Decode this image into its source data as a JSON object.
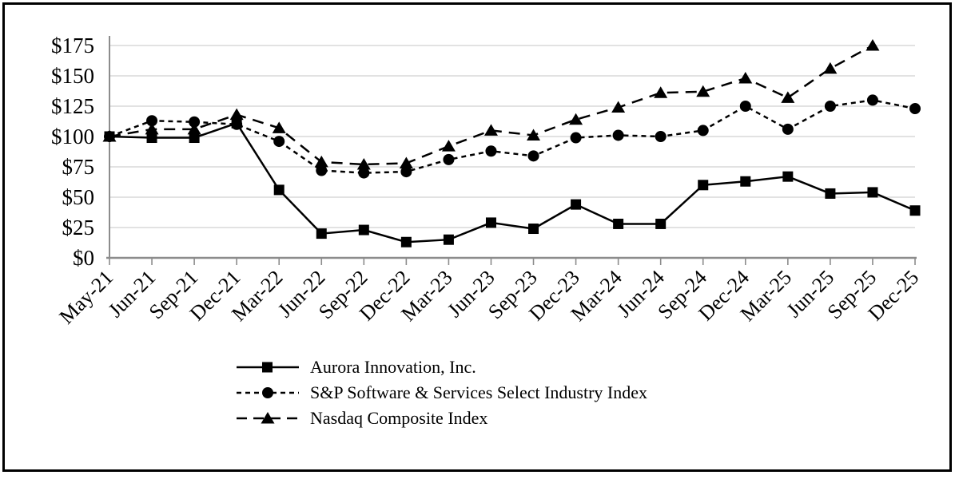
{
  "chart_data": {
    "type": "line",
    "title": "",
    "xlabel": "",
    "ylabel": "",
    "ylim": [
      0,
      175
    ],
    "grid": true,
    "legend_position": "bottom-left",
    "y_ticks": [
      "$0",
      "$25",
      "$50",
      "$75",
      "$100",
      "$125",
      "$150",
      "$175"
    ],
    "y_tick_values": [
      0,
      25,
      50,
      75,
      100,
      125,
      150,
      175
    ],
    "categories": [
      "May-21",
      "Jun-21",
      "Sep-21",
      "Dec-21",
      "Mar-22",
      "Jun-22",
      "Sep-22",
      "Dec-22",
      "Mar-23",
      "Jun-23",
      "Sep-23",
      "Dec-23",
      "Mar-24",
      "Jun-24",
      "Sep-24",
      "Dec-24",
      "Mar-25",
      "Jun-25",
      "Sep-25",
      "Dec-25"
    ],
    "series": [
      {
        "name": "Aurora Innovation, Inc.",
        "marker": "square",
        "dash": "solid",
        "values": [
          100,
          99,
          99,
          111,
          56,
          20,
          23,
          13,
          15,
          29,
          24,
          44,
          28,
          28,
          60,
          63,
          67,
          53,
          54,
          39
        ]
      },
      {
        "name": "S&P Software & Services Select Industry Index",
        "marker": "circle",
        "dash": "short-dash",
        "values": [
          100,
          113,
          112,
          110,
          96,
          72,
          70,
          71,
          81,
          88,
          84,
          99,
          101,
          100,
          105,
          125,
          106,
          125,
          130,
          123
        ]
      },
      {
        "name": "Nasdaq Composite Index",
        "marker": "triangle",
        "dash": "long-dash",
        "values": [
          100,
          106,
          106,
          118,
          107,
          79,
          77,
          78,
          92,
          105,
          101,
          114,
          124,
          136,
          137,
          148,
          132,
          156,
          175,
          null
        ]
      }
    ],
    "colors": {
      "series": "#000000",
      "gridline": "#d9d9d9",
      "axis": "#8c8c8c",
      "background": "#ffffff",
      "frame": "#000000"
    }
  }
}
